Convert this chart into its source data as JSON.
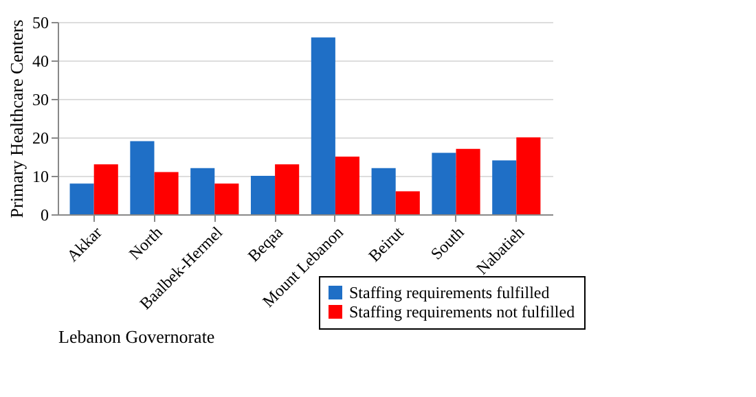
{
  "chart_data": {
    "type": "bar",
    "xlabel": "Lebanon Governorate",
    "ylabel": "Primary Healthcare Centers",
    "categories": [
      "Akkar",
      "North",
      "Baalbek-Hermel",
      "Beqaa",
      "Mount Lebanon",
      "Beirut",
      "South",
      "Nabatieh"
    ],
    "series": [
      {
        "name": "Staffing requirements fulfilled",
        "color": "#1f6fc6",
        "values": [
          8,
          19,
          12,
          10,
          46,
          12,
          16,
          14
        ]
      },
      {
        "name": "Staffing requirements not fulfilled",
        "color": "#ff0000",
        "values": [
          13,
          11,
          8,
          13,
          15,
          6,
          17,
          20
        ]
      }
    ],
    "ylim": [
      0,
      50
    ],
    "yticks": [
      0,
      10,
      20,
      30,
      40,
      50
    ],
    "grid": "y",
    "legend": "bottom right"
  }
}
